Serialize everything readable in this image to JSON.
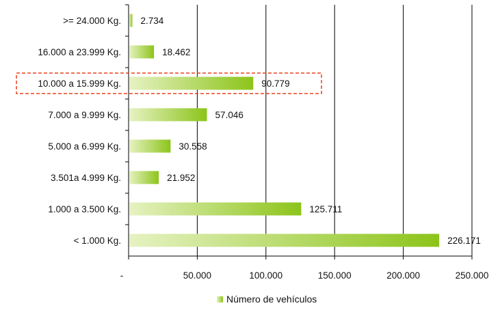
{
  "chart_data": {
    "type": "bar",
    "orientation": "horizontal",
    "categories": [
      ">= 24.000 Kg.",
      "16.000 a 23.999 Kg.",
      "10.000 a 15.999 Kg.",
      "7.000 a 9.999 Kg.",
      "5.000 a 6.999 Kg.",
      "3.501a 4.999 Kg.",
      "1.000 a 3.500 Kg.",
      "< 1.000 Kg."
    ],
    "series": [
      {
        "name": "Número de vehículos",
        "values": [
          2734,
          18462,
          90779,
          57046,
          30558,
          21952,
          125711,
          226171
        ],
        "value_labels": [
          "2.734",
          "18.462",
          "90.779",
          "57.046",
          "30.558",
          "21.952",
          "125.711",
          "226.171"
        ]
      }
    ],
    "xlim": [
      0,
      250000
    ],
    "x_ticks": [
      0,
      50000,
      100000,
      150000,
      200000,
      250000
    ],
    "x_tick_labels": [
      "-",
      "50.000",
      "100.000",
      "150.000",
      "200.000",
      "250.000"
    ],
    "grid": "vertical",
    "legend_position": "bottom",
    "highlighted_category": "10.000 a 15.999 Kg.",
    "colors": {
      "bar_light": "#e6f2c2",
      "bar_dark": "#8cc41a",
      "grid": "#000000",
      "highlight_box": "#e8401c"
    }
  }
}
